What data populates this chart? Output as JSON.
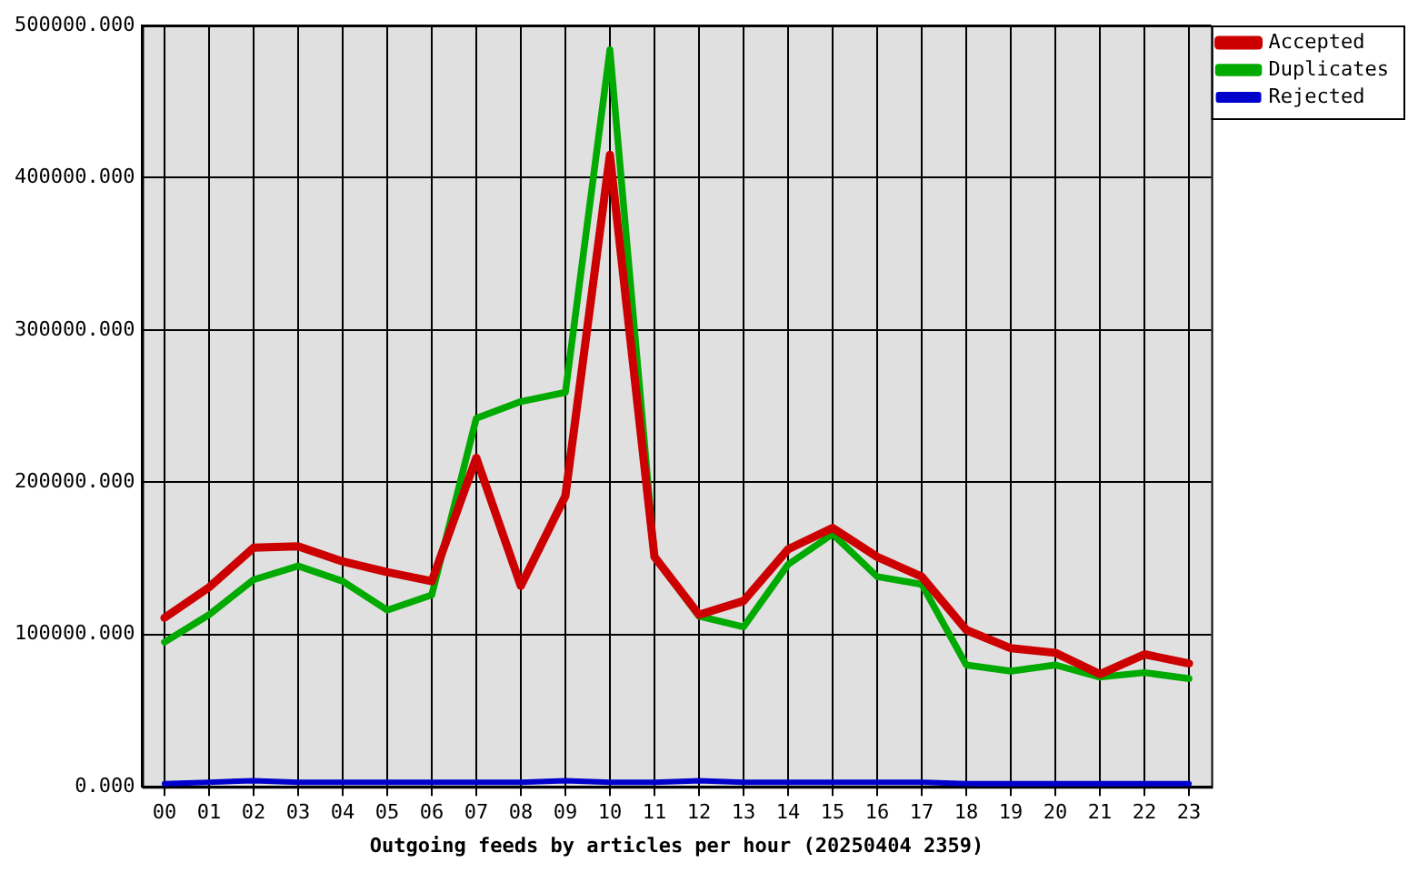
{
  "chart_data": {
    "type": "line",
    "xlabel": "Outgoing feeds by articles per hour (20250404 2359)",
    "categories": [
      "00",
      "01",
      "02",
      "03",
      "04",
      "05",
      "06",
      "07",
      "08",
      "09",
      "10",
      "11",
      "12",
      "13",
      "14",
      "15",
      "16",
      "17",
      "18",
      "19",
      "20",
      "21",
      "22",
      "23"
    ],
    "series": [
      {
        "name": "Accepted",
        "color": "#cc0000",
        "values": [
          111000,
          131000,
          157000,
          158000,
          148000,
          141000,
          135000,
          216000,
          132000,
          191000,
          415000,
          151000,
          113000,
          122000,
          156000,
          170000,
          151000,
          138000,
          103000,
          91000,
          88000,
          74000,
          87000,
          81000
        ]
      },
      {
        "name": "Duplicates",
        "color": "#00aa00",
        "values": [
          95000,
          113000,
          136000,
          145000,
          135000,
          116000,
          126000,
          242000,
          253000,
          259000,
          484000,
          151000,
          112000,
          105000,
          146000,
          166000,
          138000,
          133000,
          80000,
          76000,
          80000,
          72000,
          75000,
          71000
        ]
      },
      {
        "name": "Rejected",
        "color": "#0000cc",
        "values": [
          2000,
          3000,
          4000,
          3000,
          3000,
          3000,
          3000,
          3000,
          3000,
          4000,
          3000,
          3000,
          4000,
          3000,
          3000,
          3000,
          3000,
          3000,
          2000,
          2000,
          2000,
          2000,
          2000,
          2000
        ]
      }
    ],
    "ylim": [
      0,
      500000
    ],
    "yticks": [
      {
        "value": 0,
        "label": "0.000"
      },
      {
        "value": 100000,
        "label": "100000.000"
      },
      {
        "value": 200000,
        "label": "200000.000"
      },
      {
        "value": 300000,
        "label": "300000.000"
      },
      {
        "value": 400000,
        "label": "400000.000"
      },
      {
        "value": 500000,
        "label": "500000.000"
      }
    ],
    "grid": true,
    "legend": "top right",
    "marker": "none",
    "line_style": "solid"
  }
}
